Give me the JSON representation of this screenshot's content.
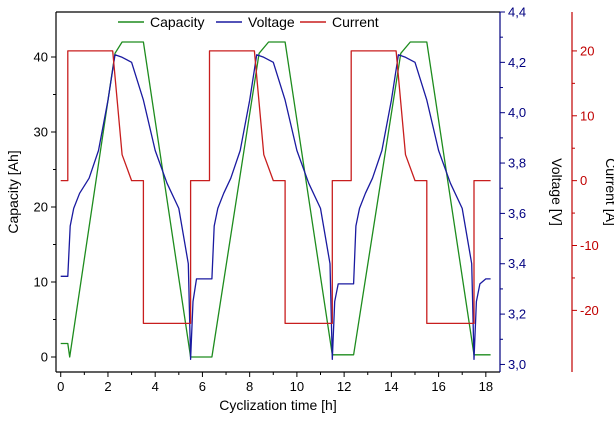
{
  "chart_data": {
    "type": "line",
    "title": "",
    "xlabel": "Cyclization time [h]",
    "xlim": [
      -0.2,
      18.6
    ],
    "xticks": [
      0,
      2,
      4,
      6,
      8,
      10,
      12,
      14,
      16,
      18
    ],
    "xtick_labels": [
      "0",
      "2",
      "4",
      "6",
      "8",
      "10",
      "12",
      "14",
      "16",
      "18"
    ],
    "grid": false,
    "legend": {
      "placement": "top-center",
      "entries": [
        "Capacity",
        "Voltage",
        "Current"
      ]
    },
    "axes": [
      {
        "id": "capacity",
        "label": "Capacity [Ah]",
        "side": "left",
        "color": "#000000",
        "ylim": [
          -2,
          46
        ],
        "ticks": [
          0,
          10,
          20,
          30,
          40
        ],
        "tick_labels": [
          "0",
          "10",
          "20",
          "30",
          "40"
        ]
      },
      {
        "id": "voltage",
        "label": "Voltage [V]",
        "side": "right",
        "color": "#000080",
        "ylim": [
          2.97,
          4.4
        ],
        "ticks": [
          3.0,
          3.2,
          3.4,
          3.6,
          3.8,
          4.0,
          4.2,
          4.4
        ],
        "tick_labels": [
          "3,0",
          "3,2",
          "3,4",
          "3,6",
          "3,8",
          "4,0",
          "4,2",
          "4,4"
        ]
      },
      {
        "id": "current",
        "label": "Current [A]",
        "side": "right-outer",
        "color": "#c00000",
        "ylim": [
          -29.5,
          26
        ],
        "ticks": [
          -20,
          -10,
          0,
          10,
          20
        ],
        "tick_labels": [
          "-20",
          "-10",
          "0",
          "10",
          "20"
        ]
      }
    ],
    "series": [
      {
        "name": "Capacity",
        "axis": "capacity",
        "color": "#1e8c1e",
        "x": [
          0,
          0.3,
          0.38,
          2.3,
          2.6,
          3.5,
          5.5,
          5.6,
          6.4,
          8.4,
          8.8,
          9.5,
          11.5,
          11.6,
          12.4,
          14.4,
          14.8,
          15.5,
          17.5,
          17.6,
          18.2
        ],
        "y": [
          1.8,
          1.8,
          0,
          40.5,
          42,
          42,
          0,
          0,
          0,
          40.5,
          42,
          42,
          0.3,
          0.3,
          0.3,
          40.5,
          42,
          42,
          0.3,
          0.3,
          0.3
        ]
      },
      {
        "name": "Voltage",
        "axis": "voltage",
        "color": "#1a1aa0",
        "x": [
          0,
          0.3,
          0.4,
          0.55,
          0.8,
          1.2,
          1.6,
          2.0,
          2.3,
          2.6,
          3.0,
          3.5,
          4.0,
          4.5,
          5.0,
          5.4,
          5.5,
          5.6,
          5.75,
          6.4,
          6.5,
          6.65,
          6.9,
          7.2,
          7.6,
          8.0,
          8.3,
          8.6,
          9.0,
          9.5,
          10.0,
          10.5,
          11.0,
          11.4,
          11.5,
          11.6,
          11.75,
          12.4,
          12.5,
          12.65,
          12.9,
          13.2,
          13.6,
          14.0,
          14.3,
          14.6,
          15.0,
          15.5,
          16.0,
          16.5,
          17.0,
          17.4,
          17.5,
          17.6,
          17.75,
          18.0,
          18.2
        ],
        "y": [
          3.35,
          3.35,
          3.55,
          3.62,
          3.68,
          3.74,
          3.85,
          4.05,
          4.23,
          4.22,
          4.2,
          4.05,
          3.85,
          3.72,
          3.62,
          3.4,
          3.02,
          3.25,
          3.34,
          3.34,
          3.55,
          3.62,
          3.68,
          3.74,
          3.85,
          4.05,
          4.23,
          4.22,
          4.2,
          4.05,
          3.85,
          3.72,
          3.62,
          3.4,
          3.02,
          3.25,
          3.32,
          3.32,
          3.55,
          3.62,
          3.68,
          3.74,
          3.85,
          4.05,
          4.23,
          4.22,
          4.2,
          4.05,
          3.85,
          3.72,
          3.62,
          3.4,
          3.02,
          3.25,
          3.32,
          3.34,
          3.34
        ]
      },
      {
        "name": "Current",
        "axis": "current",
        "color": "#c81e1e",
        "x": [
          0,
          0.3,
          0.3,
          2.2,
          2.4,
          2.6,
          3.0,
          3.5,
          3.5,
          5.5,
          5.5,
          6.3,
          6.3,
          8.2,
          8.4,
          8.6,
          9.0,
          9.5,
          9.5,
          11.5,
          11.5,
          12.3,
          12.3,
          14.2,
          14.4,
          14.6,
          15.0,
          15.5,
          15.5,
          17.5,
          17.5,
          18.2
        ],
        "y": [
          0,
          0,
          20,
          20,
          12,
          4,
          0,
          0,
          -22,
          -22,
          0,
          0,
          20,
          20,
          12,
          4,
          0,
          0,
          -22,
          -22,
          0,
          0,
          20,
          20,
          12,
          4,
          0,
          0,
          -22,
          -22,
          0,
          0
        ]
      }
    ]
  }
}
